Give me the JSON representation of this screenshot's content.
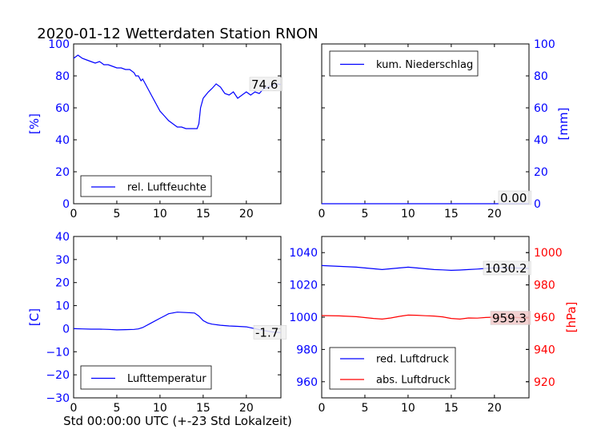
{
  "figure": {
    "title": "2020-01-12 Wetterdaten Station RNON",
    "xlabel": "Std 00:00:00 UTC (+-23 Std Lokalzeit)"
  },
  "colors": {
    "blue": "#0000ff",
    "red": "#ff0000",
    "axis": "#000000"
  },
  "chart_data": [
    {
      "id": "humidity",
      "type": "line",
      "ylabel": "[%]",
      "ylabel_color": "#0000ff",
      "xlim": [
        0,
        24
      ],
      "ylim": [
        0,
        100
      ],
      "x_ticks": [
        0,
        5,
        10,
        15,
        20
      ],
      "y_ticks": [
        0,
        20,
        40,
        60,
        80,
        100
      ],
      "tick_color": "#0000ff",
      "legend": {
        "placement": "lower-left",
        "entries": [
          {
            "label": "rel. Luftfeuchte",
            "color": "#0000ff"
          }
        ]
      },
      "series": [
        {
          "name": "rel. Luftfeuchte",
          "color": "#0000ff",
          "x": [
            0,
            0.5,
            1,
            1.5,
            2,
            2.5,
            3,
            3.5,
            4,
            4.5,
            5,
            5.5,
            6,
            6.5,
            7,
            7.2,
            7.5,
            7.8,
            8,
            8.3,
            8.6,
            9,
            9.5,
            10,
            10.5,
            11,
            11.5,
            12,
            12.5,
            13,
            13.5,
            14,
            14.3,
            14.5,
            14.7,
            15,
            15.3,
            15.6,
            16,
            16.5,
            17,
            17.5,
            18,
            18.5,
            19,
            19.5,
            20,
            20.5,
            21,
            21.5,
            22,
            22.5,
            23,
            23.5,
            24
          ],
          "y": [
            91,
            93,
            91,
            90,
            89,
            88,
            89,
            87,
            87,
            86,
            85,
            85,
            84,
            84,
            82,
            80,
            80,
            77,
            78,
            75,
            72,
            68,
            63,
            58,
            55,
            52,
            50,
            48,
            48,
            47,
            47,
            47,
            47,
            50,
            60,
            66,
            68,
            70,
            72,
            75,
            73,
            69,
            68,
            70,
            66,
            68,
            70,
            68,
            70,
            69,
            72,
            73,
            74,
            75,
            74.6
          ]
        }
      ],
      "annotation": "74.6"
    },
    {
      "id": "precipitation",
      "type": "line",
      "ylabel": "[mm]",
      "ylabel_color": "#0000ff",
      "y_axis_side": "right",
      "xlim": [
        0,
        24
      ],
      "ylim": [
        0,
        100
      ],
      "x_ticks": [
        0,
        5,
        10,
        15,
        20
      ],
      "y_ticks": [
        0,
        20,
        40,
        60,
        80,
        100
      ],
      "tick_color": "#0000ff",
      "legend": {
        "placement": "upper-left",
        "entries": [
          {
            "label": "kum. Niederschlag",
            "color": "#0000ff"
          }
        ]
      },
      "series": [
        {
          "name": "kum. Niederschlag",
          "color": "#0000ff",
          "x": [
            0,
            24
          ],
          "y": [
            0,
            0
          ]
        }
      ],
      "annotation": "0.00"
    },
    {
      "id": "temperature",
      "type": "line",
      "ylabel": "[C]",
      "ylabel_color": "#0000ff",
      "xlim": [
        0,
        24
      ],
      "ylim": [
        -30,
        40
      ],
      "x_ticks": [
        0,
        5,
        10,
        15,
        20
      ],
      "y_ticks": [
        -30,
        -20,
        -10,
        0,
        10,
        20,
        30,
        40
      ],
      "tick_color": "#0000ff",
      "legend": {
        "placement": "lower-left",
        "entries": [
          {
            "label": "Lufttemperatur",
            "color": "#0000ff"
          }
        ]
      },
      "series": [
        {
          "name": "Lufttemperatur",
          "color": "#0000ff",
          "x": [
            0,
            1,
            2,
            3,
            4,
            5,
            6,
            7,
            7.5,
            8,
            9,
            10,
            10.5,
            11,
            12,
            13,
            14,
            14.5,
            15,
            15.5,
            16,
            17,
            18,
            19,
            20,
            21,
            22,
            23,
            24
          ],
          "y": [
            0,
            -0.1,
            -0.2,
            -0.2,
            -0.3,
            -0.5,
            -0.4,
            -0.3,
            -0.1,
            0.5,
            2.5,
            4.5,
            5.5,
            6.5,
            7.2,
            7.0,
            6.8,
            5.5,
            3.5,
            2.5,
            2,
            1.5,
            1.2,
            1.0,
            0.8,
            0,
            -0.8,
            -1.4,
            -1.7
          ]
        }
      ],
      "annotation": "-1.7"
    },
    {
      "id": "pressure",
      "type": "line",
      "xlim": [
        0,
        24
      ],
      "ylim": [
        950,
        1050
      ],
      "x_ticks": [
        0,
        5,
        10,
        15,
        20
      ],
      "y_ticks": [
        960,
        980,
        1000,
        1020,
        1040
      ],
      "tick_color": "#0000ff",
      "right_axis": {
        "ylabel": "[hPa]",
        "ylabel_color": "#ff0000",
        "ylim": [
          910,
          1010
        ],
        "y_ticks": [
          920,
          940,
          960,
          980,
          1000
        ],
        "tick_color": "#ff0000"
      },
      "legend": {
        "placement": "lower-left",
        "entries": [
          {
            "label": "red. Luftdruck",
            "color": "#0000ff"
          },
          {
            "label": "abs. Luftdruck",
            "color": "#ff0000"
          }
        ]
      },
      "series": [
        {
          "name": "red. Luftdruck",
          "color": "#0000ff",
          "axis": "left",
          "x": [
            0,
            2,
            4,
            6,
            7,
            8,
            9,
            10,
            11,
            12,
            13,
            14,
            15,
            16,
            17,
            18,
            19,
            20,
            21,
            22,
            23,
            24
          ],
          "y": [
            1032,
            1031.5,
            1031,
            1030,
            1029.5,
            1030,
            1030.5,
            1031,
            1030.5,
            1030,
            1029.5,
            1029.3,
            1029,
            1029.2,
            1029.5,
            1029.8,
            1030.2,
            1030.5,
            1030.6,
            1030.5,
            1030.4,
            1030.2
          ]
        },
        {
          "name": "abs. Luftdruck",
          "color": "#ff0000",
          "axis": "right",
          "x": [
            0,
            2,
            4,
            6,
            7,
            8,
            9,
            10,
            11,
            12,
            13,
            14,
            15,
            16,
            17,
            18,
            19,
            20,
            21,
            22,
            23,
            24
          ],
          "y": [
            961,
            960.8,
            960.3,
            959.2,
            958.8,
            959.5,
            960.5,
            961.3,
            961.2,
            960.9,
            960.7,
            960.2,
            959.2,
            958.8,
            959.5,
            959.4,
            959.8,
            960.0,
            960.2,
            960.0,
            959.7,
            959.3
          ]
        }
      ],
      "annotations": [
        "1030.2",
        "959.3"
      ]
    }
  ]
}
